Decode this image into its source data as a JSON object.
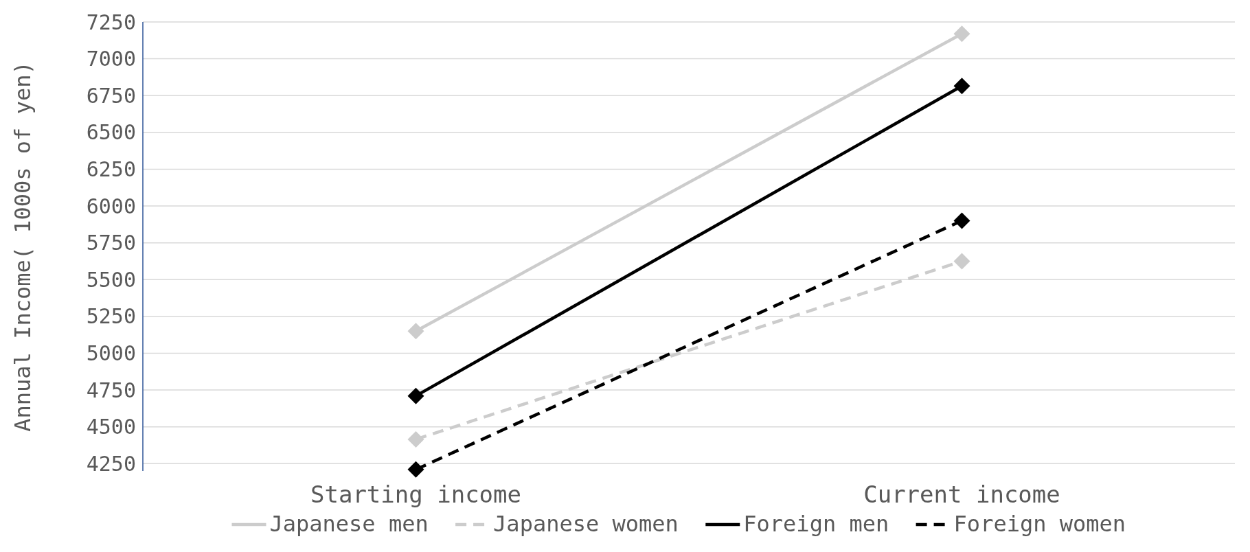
{
  "chart_data": {
    "type": "line",
    "ylabel": "Annual Income( 1000s of yen)",
    "categories": [
      "Starting income",
      "Current income"
    ],
    "ylim": [
      4200,
      7250
    ],
    "yticks": [
      4250,
      4500,
      4750,
      5000,
      5250,
      5500,
      5750,
      6000,
      6250,
      6500,
      6750,
      7000,
      7250
    ],
    "grid": "y",
    "legend": "bottom",
    "marker": "diamond",
    "series": [
      {
        "name": "Japanese men",
        "color": "#cccccc",
        "values": [
          5150,
          7170
        ],
        "line_style": "solid"
      },
      {
        "name": "Japanese women",
        "color": "#cccccc",
        "values": [
          4415,
          5625
        ],
        "line_style": "dashed"
      },
      {
        "name": "Foreign men",
        "color": "#000000",
        "values": [
          4710,
          6815
        ],
        "line_style": "solid"
      },
      {
        "name": "Foreign women",
        "color": "#000000",
        "values": [
          4210,
          5900
        ],
        "line_style": "dashed"
      }
    ]
  }
}
